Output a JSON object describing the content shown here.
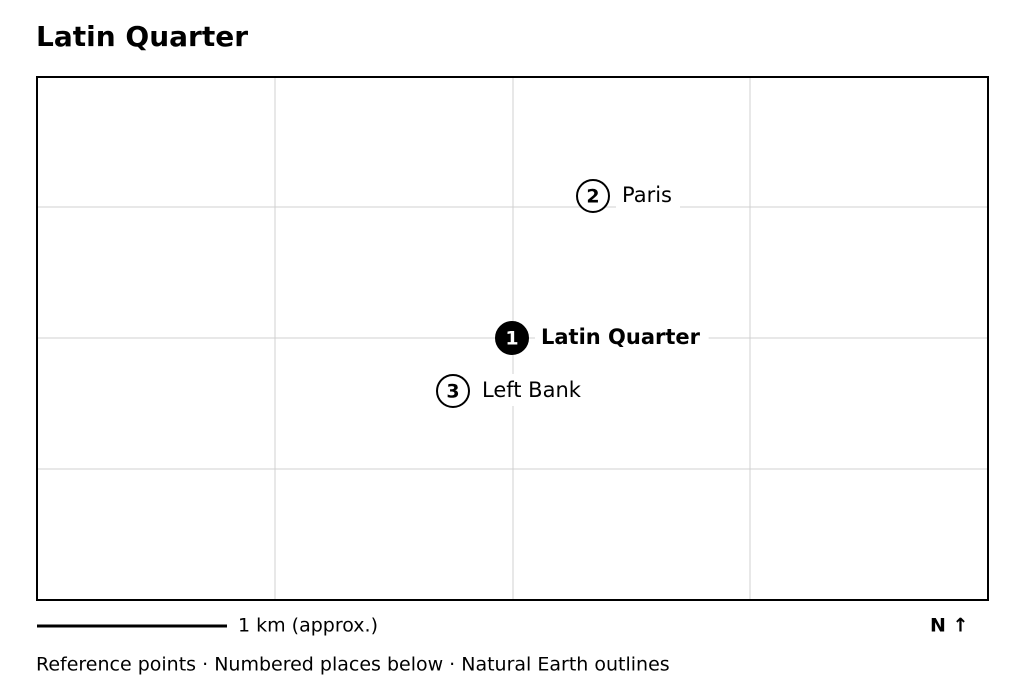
{
  "header": {
    "title": "Latin Quarter"
  },
  "places": [
    {
      "number": "1",
      "label": "Latin Quarter",
      "primary": true
    },
    {
      "number": "2",
      "label": "Paris",
      "primary": false
    },
    {
      "number": "3",
      "label": "Left Bank",
      "primary": false
    }
  ],
  "scale": {
    "label": "1 km (approx.)"
  },
  "north": {
    "label": "N ↑"
  },
  "footer": {
    "text": "Reference points · Numbered places below · Natural Earth outlines"
  }
}
